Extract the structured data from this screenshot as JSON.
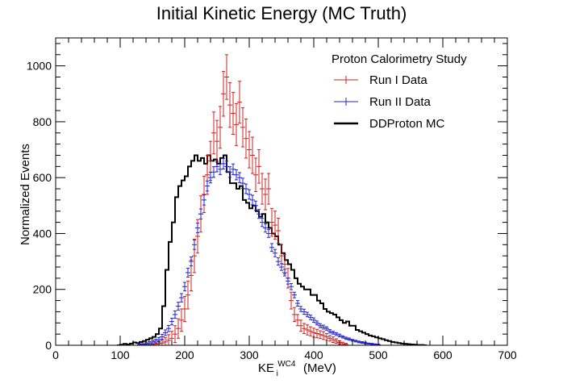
{
  "chart_data": {
    "type": "line",
    "title": "Initial Kinetic Energy (MC Truth)",
    "xlabel": {
      "main": "KE",
      "sub": "i",
      "sup": "WC4",
      "unit": " (MeV)"
    },
    "ylabel": "Normalized Events",
    "xlim": [
      0,
      700
    ],
    "ylim": [
      0,
      1100
    ],
    "xticks": [
      0,
      100,
      200,
      300,
      400,
      500,
      600,
      700
    ],
    "yticks": [
      0,
      200,
      400,
      600,
      800,
      1000
    ],
    "grid": false,
    "legend": {
      "position": "top-right",
      "title": "Proton Calorimetry Study",
      "entries": [
        {
          "label": "Run I Data",
          "color": "#cc2222",
          "style": "errorbar"
        },
        {
          "label": "Run II Data",
          "color": "#2222cc",
          "style": "errorbar"
        },
        {
          "label": "DDProton MC",
          "color": "#000000",
          "style": "line"
        }
      ]
    },
    "series": [
      {
        "name": "DDProton MC",
        "style": "step",
        "color": "#000000",
        "bin_width": 5,
        "x_start": 95,
        "values": [
          0,
          2,
          5,
          3,
          6,
          10,
          8,
          12,
          15,
          20,
          25,
          30,
          40,
          60,
          140,
          270,
          370,
          440,
          530,
          570,
          590,
          605,
          640,
          660,
          680,
          660,
          670,
          650,
          680,
          660,
          665,
          650,
          670,
          680,
          620,
          580,
          580,
          560,
          570,
          520,
          510,
          490,
          500,
          480,
          460,
          470,
          440,
          420,
          400,
          390,
          360,
          330,
          305,
          290,
          270,
          240,
          220,
          210,
          200,
          200,
          180,
          180,
          160,
          150,
          130,
          120,
          115,
          110,
          100,
          90,
          80,
          85,
          70,
          70,
          55,
          50,
          45,
          40,
          35,
          32,
          28,
          25,
          22,
          18,
          15,
          12,
          10,
          8,
          6,
          5,
          4,
          3,
          2,
          1,
          1,
          0
        ]
      },
      {
        "name": "Run I Data",
        "style": "errorbar",
        "color": "#cc2222",
        "x": [
          150,
          155,
          160,
          165,
          170,
          175,
          180,
          185,
          190,
          195,
          200,
          205,
          210,
          215,
          220,
          225,
          230,
          235,
          240,
          245,
          250,
          255,
          260,
          265,
          270,
          275,
          280,
          285,
          290,
          295,
          300,
          305,
          310,
          315,
          320,
          325,
          330,
          335,
          340,
          345,
          350,
          355,
          360,
          365,
          370,
          375,
          380,
          385,
          390,
          395,
          400,
          405,
          410,
          415,
          420,
          425,
          430,
          435,
          440,
          445,
          450
        ],
        "y": [
          2,
          4,
          6,
          8,
          12,
          18,
          25,
          40,
          60,
          90,
          130,
          180,
          250,
          320,
          390,
          470,
          540,
          610,
          660,
          760,
          730,
          780,
          900,
          960,
          860,
          830,
          790,
          870,
          780,
          740,
          700,
          680,
          610,
          640,
          560,
          540,
          560,
          440,
          430,
          410,
          320,
          290,
          240,
          160,
          110,
          90,
          70,
          60,
          55,
          50,
          45,
          42,
          38,
          35,
          30,
          25,
          20,
          15,
          10,
          6,
          3
        ],
        "yerr": [
          3,
          5,
          8,
          10,
          15,
          20,
          25,
          30,
          35,
          40,
          45,
          50,
          55,
          60,
          60,
          65,
          65,
          70,
          70,
          75,
          75,
          75,
          80,
          80,
          80,
          75,
          75,
          75,
          70,
          70,
          65,
          65,
          60,
          60,
          55,
          55,
          55,
          50,
          50,
          45,
          40,
          35,
          35,
          30,
          25,
          20,
          20,
          18,
          18,
          16,
          16,
          15,
          14,
          14,
          12,
          10,
          10,
          8,
          6,
          5,
          4
        ]
      },
      {
        "name": "Run II Data",
        "style": "errorbar",
        "color": "#2222cc",
        "x": [
          130,
          135,
          140,
          145,
          150,
          155,
          160,
          165,
          170,
          175,
          180,
          185,
          190,
          195,
          200,
          205,
          210,
          215,
          220,
          225,
          230,
          235,
          240,
          245,
          250,
          255,
          260,
          265,
          270,
          275,
          280,
          285,
          290,
          295,
          300,
          305,
          310,
          315,
          320,
          325,
          330,
          335,
          340,
          345,
          350,
          355,
          360,
          365,
          370,
          375,
          380,
          385,
          390,
          395,
          400,
          405,
          410,
          415,
          420,
          425,
          430,
          435,
          440,
          445,
          450,
          455,
          460,
          465,
          470,
          475,
          480,
          485,
          490,
          495,
          500
        ],
        "y": [
          2,
          3,
          5,
          8,
          12,
          15,
          20,
          30,
          45,
          60,
          85,
          110,
          140,
          170,
          210,
          260,
          300,
          360,
          420,
          470,
          520,
          570,
          600,
          620,
          640,
          630,
          650,
          640,
          620,
          630,
          610,
          600,
          580,
          560,
          540,
          520,
          500,
          470,
          440,
          420,
          400,
          350,
          330,
          300,
          280,
          260,
          230,
          210,
          180,
          150,
          130,
          120,
          110,
          100,
          90,
          80,
          70,
          65,
          60,
          50,
          45,
          40,
          35,
          30,
          25,
          22,
          18,
          15,
          12,
          10,
          8,
          6,
          5,
          3,
          2
        ],
        "yerr": [
          3,
          3,
          4,
          5,
          6,
          7,
          8,
          9,
          10,
          11,
          12,
          13,
          14,
          15,
          15,
          16,
          16,
          17,
          17,
          18,
          18,
          18,
          19,
          19,
          19,
          19,
          19,
          19,
          19,
          19,
          18,
          18,
          18,
          17,
          17,
          17,
          16,
          16,
          15,
          15,
          14,
          14,
          13,
          13,
          12,
          12,
          11,
          11,
          10,
          10,
          9,
          9,
          8,
          8,
          8,
          7,
          7,
          7,
          6,
          6,
          5,
          5,
          5,
          4,
          4,
          4,
          3,
          3,
          3,
          3,
          3,
          2,
          2,
          2,
          2
        ]
      }
    ]
  }
}
